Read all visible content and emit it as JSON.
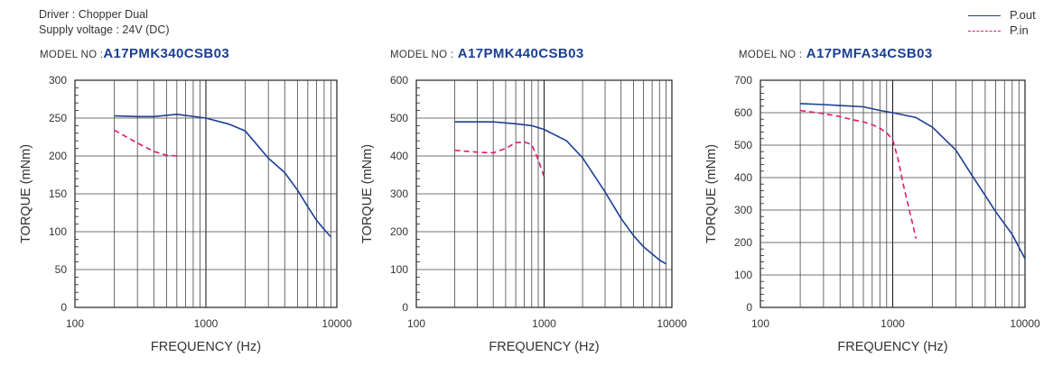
{
  "header": {
    "driver": "Driver : Chopper Dual",
    "supply": "Supply voltage : 24V (DC)"
  },
  "legend": [
    {
      "label": "P.out",
      "color": "#1c3f94",
      "dash": "solid"
    },
    {
      "label": "P.in",
      "color": "#e0186c",
      "dash": "dashed"
    }
  ],
  "chart_data": [
    {
      "type": "line",
      "model_prefix": "MODEL NO :",
      "model": "A17PMK340CSB03",
      "xlabel": "FREQUENCY (Hz)",
      "ylabel": "TORQUE (mNm)",
      "xscale": "log",
      "xlim": [
        100,
        10000
      ],
      "ylim": [
        0,
        300
      ],
      "xticks": [
        "100",
        "1000",
        "10000"
      ],
      "yticks": [
        "0",
        "50",
        "100",
        "150",
        "200",
        "250",
        "300"
      ],
      "grid": true,
      "series": [
        {
          "name": "P.out",
          "color": "#1c3f94",
          "dash": "solid",
          "x": [
            200,
            300,
            400,
            600,
            1000,
            1500,
            2000,
            3000,
            4000,
            5000,
            6000,
            7000,
            8000,
            9000
          ],
          "y": [
            253,
            252,
            252,
            255,
            250,
            242,
            233,
            197,
            178,
            155,
            133,
            115,
            103,
            93
          ]
        },
        {
          "name": "P.in",
          "color": "#e0186c",
          "dash": "dashed",
          "x": [
            200,
            300,
            400,
            500,
            600
          ],
          "y": [
            234,
            217,
            206,
            201,
            200
          ]
        }
      ]
    },
    {
      "type": "line",
      "model_prefix": "MODEL NO :",
      "model": "A17PMK440CSB03",
      "xlabel": "FREQUENCY (Hz)",
      "ylabel": "TORQUE (mNm)",
      "xscale": "log",
      "xlim": [
        100,
        10000
      ],
      "ylim": [
        0,
        600
      ],
      "xticks": [
        "100",
        "1000",
        "10000"
      ],
      "yticks": [
        "0",
        "100",
        "200",
        "300",
        "400",
        "500",
        "600"
      ],
      "grid": true,
      "series": [
        {
          "name": "P.out",
          "color": "#1c3f94",
          "dash": "solid",
          "x": [
            200,
            300,
            400,
            600,
            800,
            1000,
            1500,
            2000,
            3000,
            4000,
            5000,
            6000,
            8000,
            9000
          ],
          "y": [
            490,
            490,
            490,
            485,
            480,
            470,
            440,
            395,
            305,
            235,
            190,
            160,
            125,
            115
          ]
        },
        {
          "name": "P.in",
          "color": "#e0186c",
          "dash": "dashed",
          "x": [
            200,
            300,
            400,
            500,
            600,
            700,
            800,
            900,
            1000
          ],
          "y": [
            415,
            410,
            408,
            420,
            435,
            437,
            430,
            390,
            345
          ]
        }
      ]
    },
    {
      "type": "line",
      "model_prefix": "MODEL NO :",
      "model": "A17PMFA34CSB03",
      "xlabel": "FREQUENCY (Hz)",
      "ylabel": "TORQUE (mNm)",
      "xscale": "log",
      "xlim": [
        100,
        10000
      ],
      "ylim": [
        0,
        700
      ],
      "xticks": [
        "100",
        "1000",
        "10000"
      ],
      "yticks": [
        "0",
        "100",
        "200",
        "300",
        "400",
        "500",
        "600",
        "700"
      ],
      "grid": true,
      "series": [
        {
          "name": "P.out",
          "color": "#1c3f94",
          "dash": "solid",
          "x": [
            200,
            300,
            400,
            500,
            600,
            800,
            1000,
            1500,
            2000,
            3000,
            4000,
            5000,
            6000,
            8000,
            10000
          ],
          "y": [
            628,
            625,
            622,
            620,
            618,
            607,
            600,
            585,
            555,
            485,
            405,
            345,
            295,
            225,
            150
          ]
        },
        {
          "name": "P.in",
          "color": "#e0186c",
          "dash": "dashed",
          "x": [
            200,
            300,
            400,
            500,
            600,
            700,
            800,
            900,
            1000,
            1100,
            1200,
            1300,
            1400,
            1500
          ],
          "y": [
            607,
            597,
            588,
            578,
            572,
            563,
            552,
            538,
            517,
            455,
            380,
            320,
            265,
            212
          ]
        }
      ]
    }
  ]
}
